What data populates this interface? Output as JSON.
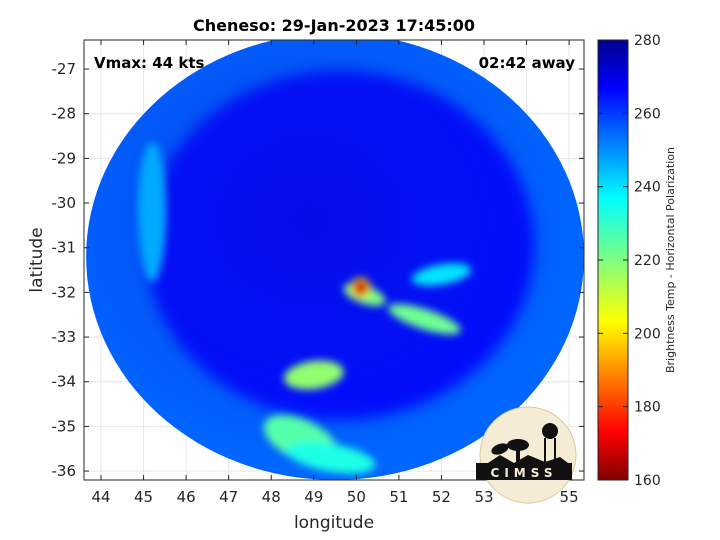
{
  "chart_data": {
    "type": "heatmap",
    "title": "Cheneso: 29-Jan-2023 17:45:00",
    "xlabel": "longitude",
    "ylabel": "latitude",
    "xlim": [
      43.6,
      55.35
    ],
    "ylim": [
      -36.2,
      -26.35
    ],
    "x_ticks": [
      44,
      45,
      46,
      47,
      48,
      49,
      50,
      51,
      52,
      53,
      54,
      55
    ],
    "y_ticks": [
      -27,
      -28,
      -29,
      -30,
      -31,
      -32,
      -33,
      -34,
      -35,
      -36
    ],
    "grid": true,
    "annotations": {
      "vmax": "Vmax: 44 kts",
      "time_away": "02:42 away"
    },
    "colorbar": {
      "label": "Brightness Temp - Horizontal Polarization",
      "range": [
        160,
        280
      ],
      "ticks": [
        160,
        180,
        200,
        220,
        240,
        260,
        280
      ],
      "colormap": "jet"
    },
    "swath": {
      "center_lon": 49.5,
      "center_lat": -31.2,
      "radius_deg_lon": 5.85,
      "radius_deg_lat": 5.0
    },
    "features": [
      {
        "name": "eye/core",
        "lon": 50.1,
        "lat": -31.9,
        "value": 170
      },
      {
        "name": "band east",
        "lon": 51.6,
        "lat": -32.6,
        "value": 222
      },
      {
        "name": "band south",
        "lon": 49.0,
        "lat": -33.85,
        "value": 218
      },
      {
        "name": "band southwest",
        "lon": 48.7,
        "lat": -35.3,
        "value": 225
      },
      {
        "name": "band south lower",
        "lon": 49.4,
        "lat": -35.7,
        "value": 232
      },
      {
        "name": "band east faint",
        "lon": 52.0,
        "lat": -31.6,
        "value": 238
      },
      {
        "name": "west arc",
        "lon": 45.2,
        "lat": -30.2,
        "value": 245
      }
    ],
    "background_value": 265
  },
  "logo": {
    "text": "CIMSS"
  }
}
